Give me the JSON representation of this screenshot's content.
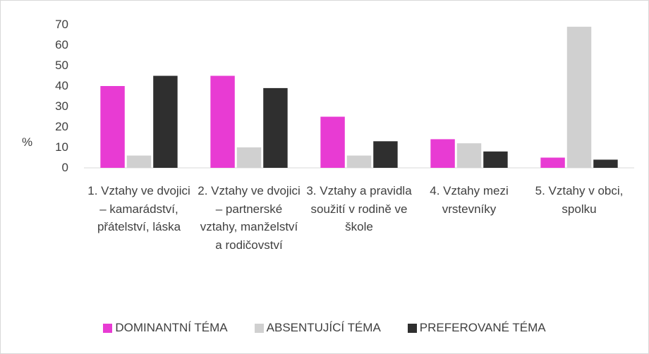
{
  "chart_data": {
    "type": "bar",
    "categories": [
      "1. Vztahy ve dvojici – kamarádství, přátelství, láska",
      "2. Vztahy ve dvojici – partnerské vztahy, manželství a rodičovství",
      "3. Vztahy a pravidla soužití v rodině ve škole",
      "4. Vztahy mezi vrstevníky",
      "5. Vztahy v obci, spolku"
    ],
    "series": [
      {
        "name": "DOMINANTNÍ TÉMA",
        "color": "#e83bd3",
        "values": [
          40,
          45,
          25,
          14,
          5
        ]
      },
      {
        "name": "ABSENTUJÍCÍ TÉMA",
        "color": "#d0d0d0",
        "values": [
          6,
          10,
          6,
          12,
          69
        ]
      },
      {
        "name": "PREFEROVANÉ TÉMA",
        "color": "#2f2f2f",
        "values": [
          45,
          39,
          13,
          8,
          4
        ]
      }
    ],
    "y_label": "%",
    "ylim": [
      0,
      70
    ],
    "yticks": [
      0,
      10,
      20,
      30,
      40,
      50,
      60,
      70
    ],
    "grid": false,
    "legend": "bottom"
  }
}
